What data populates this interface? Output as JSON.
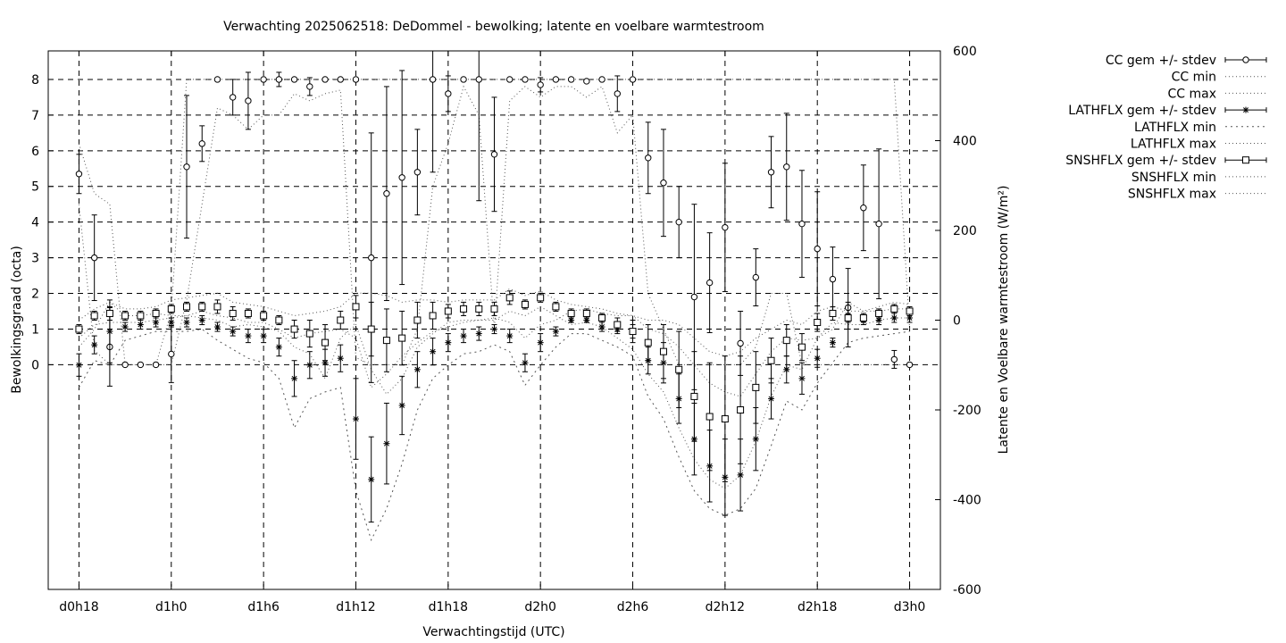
{
  "chart_data": {
    "type": "line",
    "title": "Verwachting 2025062518: DeDommel - bewolking; latente en voelbare warmtestroom",
    "xlabel": "Verwachtingstijd (UTC)",
    "ylabel_left": "Bewolkingsgraad (octa)",
    "ylabel_right": "Latente en Voelbare warmtestroom (W/m²)",
    "x_ticks": [
      "d0h18",
      "d1h0",
      "d1h6",
      "d1h12",
      "d1h18",
      "d2h0",
      "d2h6",
      "d2h12",
      "d2h18",
      "d3h0"
    ],
    "x_tick_hours": [
      18,
      24,
      30,
      36,
      42,
      48,
      54,
      60,
      66,
      72
    ],
    "xlim": [
      16,
      74
    ],
    "ylim_left": [
      -6.3,
      8.8
    ],
    "yticks_left": [
      0,
      1,
      2,
      3,
      4,
      5,
      6,
      7,
      8
    ],
    "ylim_right": [
      -600,
      600
    ],
    "yticks_right": [
      -600,
      -400,
      -200,
      0,
      200,
      400,
      600
    ],
    "grid": true,
    "legend_position": "outside-right",
    "legend": [
      "CC gem +/- stdev",
      "CC min",
      "CC max",
      "LATHFLX gem +/- stdev",
      "LATHFLX min",
      "LATHFLX max",
      "SNSHFLX gem +/- stdev",
      "SNSHFLX min",
      "SNSHFLX max"
    ],
    "x_hours": [
      18,
      19,
      20,
      21,
      22,
      23,
      24,
      25,
      26,
      27,
      28,
      29,
      30,
      31,
      32,
      33,
      34,
      35,
      36,
      37,
      38,
      39,
      40,
      41,
      42,
      43,
      44,
      45,
      46,
      47,
      48,
      49,
      50,
      51,
      52,
      53,
      54,
      55,
      56,
      57,
      58,
      59,
      60,
      61,
      62,
      63,
      64,
      65,
      66,
      67,
      68,
      69,
      70,
      71,
      72
    ],
    "series": [
      {
        "name": "CC gem +/- stdev",
        "axis": "left",
        "marker": "circle",
        "mean": [
          5.35,
          3.0,
          0.5,
          0,
          0,
          0,
          0.3,
          5.55,
          6.2,
          8,
          7.5,
          7.4,
          8,
          8,
          8,
          7.8,
          8,
          8,
          8,
          3.0,
          4.8,
          5.25,
          5.4,
          8,
          7.6,
          8,
          8,
          5.9,
          8,
          8,
          7.85,
          8,
          8,
          7.95,
          8,
          7.6,
          8,
          5.8,
          5.1,
          4.0,
          1.9,
          2.3,
          3.85,
          0.6,
          2.45,
          5.4,
          5.55,
          3.95,
          3.25,
          2.4,
          1.6,
          4.4,
          3.95,
          0.15,
          0
        ],
        "stdev": [
          0.55,
          1.2,
          1.1,
          0,
          0,
          0,
          0.8,
          2.0,
          0.5,
          0,
          0.5,
          0.8,
          0,
          0.2,
          0,
          0.25,
          0,
          0,
          0,
          3.5,
          3.0,
          3.0,
          1.2,
          2.6,
          0.5,
          0,
          3.4,
          1.6,
          0,
          0,
          0.2,
          0,
          0,
          0,
          0,
          0.5,
          0,
          1.0,
          1.5,
          1.0,
          2.6,
          1.4,
          1.8,
          0.9,
          0.8,
          1.0,
          1.5,
          1.5,
          1.6,
          0.9,
          1.1,
          1.2,
          2.1,
          0.25,
          0
        ]
      },
      {
        "name": "LATHFLX gem +/- stdev",
        "axis": "right",
        "marker": "star",
        "mean": [
          -100,
          -55,
          -25,
          -15,
          -10,
          -5,
          -5,
          -5,
          0,
          -15,
          -25,
          -35,
          -35,
          -60,
          -130,
          -100,
          -95,
          -85,
          -220,
          -355,
          -275,
          -190,
          -110,
          -70,
          -50,
          -35,
          -30,
          -20,
          -35,
          -95,
          -50,
          -25,
          0,
          0,
          -15,
          -20,
          -25,
          -90,
          -95,
          -175,
          -265,
          -325,
          -350,
          -345,
          -265,
          -175,
          -110,
          -130,
          -85,
          -50,
          10,
          0,
          0,
          5,
          5
        ],
        "stdev": [
          25,
          20,
          70,
          10,
          10,
          10,
          10,
          10,
          10,
          10,
          10,
          15,
          15,
          20,
          40,
          30,
          30,
          30,
          90,
          95,
          90,
          65,
          40,
          30,
          20,
          15,
          15,
          10,
          15,
          20,
          20,
          10,
          5,
          5,
          10,
          10,
          15,
          30,
          45,
          55,
          80,
          80,
          85,
          80,
          70,
          45,
          30,
          35,
          20,
          10,
          30,
          10,
          10,
          10,
          10
        ]
      },
      {
        "name": "SNSHFLX gem +/- stdev",
        "axis": "right",
        "marker": "square",
        "mean": [
          -20,
          10,
          15,
          10,
          10,
          15,
          25,
          30,
          30,
          30,
          15,
          15,
          10,
          0,
          -20,
          -30,
          -50,
          0,
          30,
          -20,
          -45,
          -40,
          0,
          10,
          20,
          25,
          25,
          25,
          50,
          35,
          50,
          30,
          15,
          15,
          5,
          -10,
          -25,
          -50,
          -70,
          -110,
          -170,
          -215,
          -220,
          -200,
          -150,
          -90,
          -45,
          -60,
          -5,
          15,
          5,
          5,
          15,
          25,
          20
        ],
        "stdev": [
          10,
          10,
          15,
          10,
          10,
          10,
          10,
          10,
          10,
          15,
          15,
          10,
          10,
          10,
          20,
          30,
          40,
          20,
          25,
          60,
          70,
          60,
          40,
          30,
          15,
          15,
          15,
          15,
          15,
          10,
          10,
          10,
          10,
          10,
          10,
          15,
          25,
          40,
          60,
          85,
          100,
          120,
          140,
          120,
          80,
          50,
          35,
          30,
          20,
          15,
          10,
          10,
          10,
          10,
          10
        ]
      }
    ],
    "envelopes": [
      {
        "name": "CC min",
        "axis": "left",
        "values": [
          4.5,
          0.4,
          0.0,
          0.0,
          0.0,
          0.0,
          0.0,
          1.8,
          4.5,
          7.2,
          7.0,
          6.6,
          7.0,
          7.0,
          7.6,
          7.4,
          7.6,
          7.7,
          0.2,
          0.0,
          0.0,
          0.0,
          1.0,
          5.0,
          6.2,
          7.8,
          7.0,
          1.0,
          7.4,
          7.8,
          7.5,
          7.8,
          7.8,
          7.5,
          7.8,
          6.5,
          7.0,
          2.0,
          1.0,
          0.0,
          0.0,
          0.0,
          0.0,
          0.0,
          0.5,
          2.0,
          2.0,
          0.0,
          0.0,
          0.0,
          0.0,
          0.0,
          0.0,
          0.0,
          0.0
        ]
      },
      {
        "name": "CC max",
        "axis": "left",
        "values": [
          6.2,
          4.8,
          4.5,
          0.0,
          0.0,
          0.0,
          1.5,
          8.0,
          8.0,
          8.0,
          8.0,
          8.0,
          8.0,
          8.0,
          8.0,
          8.0,
          8.0,
          8.0,
          8.0,
          8.0,
          8.0,
          8.0,
          8.0,
          8.0,
          8.0,
          8.0,
          8.0,
          8.0,
          8.0,
          8.0,
          8.0,
          8.0,
          8.0,
          8.0,
          8.0,
          8.0,
          8.0,
          8.0,
          8.0,
          8.0,
          8.0,
          8.0,
          8.0,
          8.0,
          8.0,
          8.0,
          8.0,
          8.0,
          8.0,
          8.0,
          8.0,
          8.0,
          8.0,
          8.0,
          1.0
        ]
      },
      {
        "name": "LATHFLX min",
        "axis": "right",
        "values": [
          -150,
          -90,
          -100,
          -45,
          -35,
          -25,
          -25,
          -25,
          -20,
          -45,
          -65,
          -85,
          -95,
          -130,
          -240,
          -175,
          -160,
          -150,
          -380,
          -490,
          -420,
          -320,
          -200,
          -130,
          -100,
          -75,
          -70,
          -55,
          -70,
          -145,
          -100,
          -60,
          -30,
          -30,
          -45,
          -60,
          -80,
          -170,
          -220,
          -305,
          -380,
          -420,
          -435,
          -420,
          -375,
          -280,
          -180,
          -200,
          -140,
          -95,
          -50,
          -40,
          -35,
          -30,
          -25
        ]
      },
      {
        "name": "LATHFLX max",
        "axis": "right",
        "values": [
          -60,
          -20,
          40,
          10,
          10,
          15,
          10,
          10,
          20,
          10,
          5,
          -5,
          -5,
          -20,
          -40,
          -30,
          -25,
          -20,
          -40,
          -150,
          -120,
          -80,
          -50,
          -25,
          -15,
          -5,
          0,
          5,
          -5,
          -40,
          -10,
          0,
          20,
          25,
          15,
          10,
          10,
          -20,
          -30,
          -60,
          -100,
          -140,
          -160,
          -170,
          -120,
          -70,
          -40,
          -45,
          -40,
          -20,
          40,
          20,
          20,
          25,
          25
        ]
      },
      {
        "name": "SNSHFLX min",
        "axis": "right",
        "values": [
          -40,
          -10,
          -5,
          -5,
          -5,
          0,
          5,
          10,
          5,
          0,
          -15,
          -10,
          -15,
          -25,
          -60,
          -75,
          -130,
          -40,
          -10,
          -110,
          -165,
          -130,
          -60,
          -30,
          -5,
          0,
          0,
          0,
          20,
          10,
          30,
          10,
          -10,
          -5,
          -15,
          -40,
          -65,
          -120,
          -160,
          -240,
          -310,
          -355,
          -375,
          -345,
          -270,
          -170,
          -100,
          -110,
          -40,
          -5,
          -10,
          -10,
          0,
          5,
          5
        ]
      },
      {
        "name": "SNSHFLX max",
        "axis": "right",
        "values": [
          0,
          25,
          40,
          25,
          25,
          30,
          45,
          50,
          55,
          60,
          40,
          35,
          30,
          20,
          10,
          15,
          20,
          30,
          60,
          60,
          55,
          40,
          45,
          45,
          40,
          45,
          45,
          45,
          70,
          55,
          65,
          45,
          35,
          30,
          25,
          15,
          10,
          0,
          0,
          -10,
          -40,
          -70,
          -80,
          -70,
          -40,
          -20,
          0,
          -10,
          20,
          30,
          20,
          20,
          30,
          40,
          35
        ]
      }
    ]
  }
}
